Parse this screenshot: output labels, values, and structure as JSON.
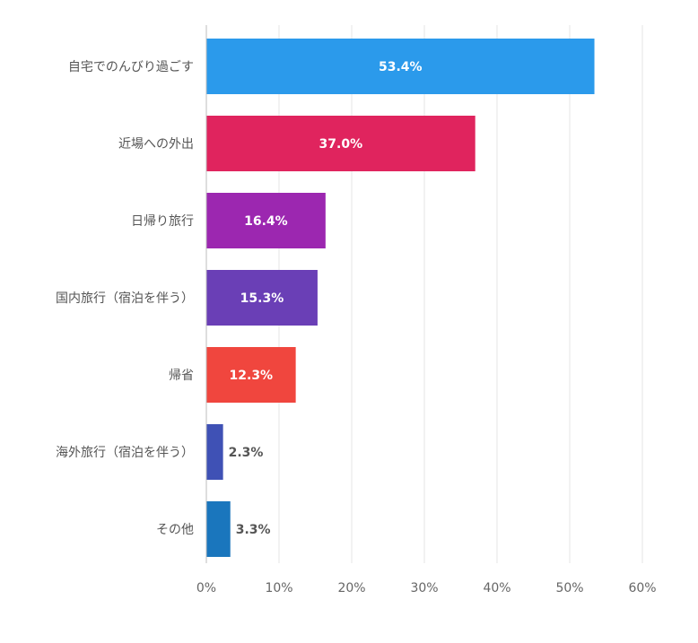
{
  "chart_data": {
    "type": "bar",
    "orientation": "horizontal",
    "categories": [
      "自宅でのんびり過ごす",
      "近場への外出",
      "日帰り旅行",
      "国内旅行（宿泊を伴う）",
      "帰省",
      "海外旅行（宿泊を伴う）",
      "その他"
    ],
    "values": [
      53.4,
      37.0,
      16.4,
      15.3,
      12.3,
      2.3,
      3.3
    ],
    "value_labels": [
      "53.4%",
      "37.0%",
      "16.4%",
      "15.3%",
      "12.3%",
      "2.3%",
      "3.3%"
    ],
    "colors": [
      "#2b9aeb",
      "#e0245e",
      "#9c27b0",
      "#6a3fb6",
      "#f0463e",
      "#3f51b5",
      "#1a76bd"
    ],
    "x_ticks": [
      "0%",
      "10%",
      "20%",
      "30%",
      "40%",
      "50%",
      "60%"
    ],
    "xlim": [
      0,
      60
    ],
    "grid": true,
    "legend": "none",
    "title": "",
    "xlabel": "",
    "ylabel": ""
  }
}
